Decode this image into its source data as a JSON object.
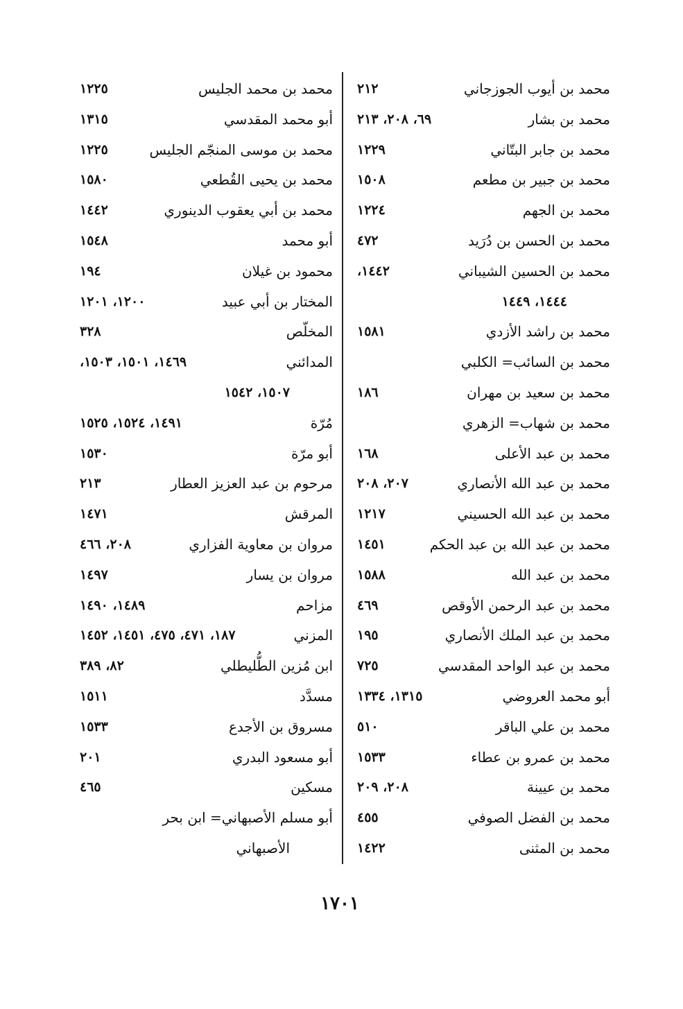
{
  "right_column": [
    {
      "name": "محمد بن أيوب الجوزجاني",
      "pages": "٢١٢"
    },
    {
      "name": "محمد بن بشار",
      "pages": "٦٩، ٢٠٨، ٢١٣"
    },
    {
      "name": "محمد بن جابر البتّاني",
      "pages": "١٢٢٩"
    },
    {
      "name": "محمد بن جبير بن مطعم",
      "pages": "١٥٠٨"
    },
    {
      "name": "محمد بن الجهم",
      "pages": "١٢٢٤"
    },
    {
      "name": "محمد بن الحسن بن دُرَيد",
      "pages": "٤٧٢"
    },
    {
      "name": "محمد بن الحسين الشيباني",
      "pages": "١٤٤٢،"
    },
    {
      "continuation": "١٤٤٤، ١٤٤٩",
      "numeric": true
    },
    {
      "name": "محمد بن راشد الأزدي",
      "pages": "١٥٨١"
    },
    {
      "name": "محمد بن السائب= الكلبي",
      "pages": ""
    },
    {
      "name": "محمد بن سعيد بن مهران",
      "pages": "١٨٦"
    },
    {
      "name": "محمد بن شهاب= الزهري",
      "pages": ""
    },
    {
      "name": "محمد بن عبد الأعلى",
      "pages": "١٦٨"
    },
    {
      "name": "محمد بن عبد الله الأنصاري",
      "pages": "٢٠٧، ٢٠٨"
    },
    {
      "name": "محمد بن عبد الله الحسيني",
      "pages": "١٢١٧"
    },
    {
      "name": "محمد بن عبد الله بن عبد الحكم",
      "pages": "١٤٥١"
    },
    {
      "name": "محمد بن عبد الله",
      "pages": "١٥٨٨"
    },
    {
      "name": "محمد بن عبد الرحمن الأوقص",
      "pages": "٤٦٩"
    },
    {
      "name": "محمد بن عبد الملك الأنصاري",
      "pages": "١٩٥"
    },
    {
      "name": "محمد بن عبد الواحد المقدسي",
      "pages": "٧٢٥"
    },
    {
      "name": "أبو محمد العروضي",
      "pages": "١٣١٥، ١٣٣٤"
    },
    {
      "name": "محمد بن علي الباقر",
      "pages": "٥١٠"
    },
    {
      "name": "محمد بن عمرو بن عطاء",
      "pages": "١٥٣٣"
    },
    {
      "name": "محمد بن عيينة",
      "pages": "٢٠٨، ٢٠٩"
    },
    {
      "name": "محمد بن الفضل الصوفي",
      "pages": "٤٥٥"
    },
    {
      "name": "محمد بن المثنى",
      "pages": "١٤٢٢"
    }
  ],
  "left_column": [
    {
      "name": "محمد بن محمد الجليس",
      "pages": "١٢٢٥"
    },
    {
      "name": "أبو محمد المقدسي",
      "pages": "١٣١٥"
    },
    {
      "name": "محمد بن موسى المنجّم الجليس",
      "pages": "١٢٢٥"
    },
    {
      "name": "محمد بن يحيى القُطعي",
      "pages": "١٥٨٠"
    },
    {
      "name": "محمد بن أبي يعقوب الدينوري",
      "pages": "١٤٤٢"
    },
    {
      "name": "أبو محمد",
      "pages": "١٥٤٨"
    },
    {
      "name": "محمود بن غيلان",
      "pages": "١٩٤"
    },
    {
      "name": "المختار بن أبي عبيد",
      "pages": "١٢٠٠، ١٢٠١"
    },
    {
      "name": "المخلّص",
      "pages": "٣٢٨"
    },
    {
      "name": "المدائني",
      "pages": "١٤٦٩، ١٥٠١، ١٥٠٣،"
    },
    {
      "continuation": "١٥٠٧، ١٥٤٢",
      "numeric": true
    },
    {
      "name": "مُرّة",
      "pages": "١٤٩١، ١٥٢٤، ١٥٢٥"
    },
    {
      "name": "أبو مرّة",
      "pages": "١٥٣٠"
    },
    {
      "name": "مرحوم بن عبد العزيز العطار",
      "pages": "٢١٣"
    },
    {
      "name": "المرقش",
      "pages": "١٤٧١"
    },
    {
      "name": "مروان بن معاوية الفزاري",
      "pages": "٢٠٨، ٤٦٦"
    },
    {
      "name": "مروان بن يسار",
      "pages": "١٤٩٧"
    },
    {
      "name": "مزاحم",
      "pages": "١٤٨٩، ١٤٩٠"
    },
    {
      "name": "المزني",
      "pages": "١٨٧، ٤٧١، ٤٧٥، ١٤٥١، ١٤٥٢"
    },
    {
      "name": "ابن مُزين الطُّليطلي",
      "pages": "٨٢، ٣٨٩"
    },
    {
      "name": "مسدَّد",
      "pages": "١٥١١"
    },
    {
      "name": "مسروق بن الأجدع",
      "pages": "١٥٣٣"
    },
    {
      "name": "أبو مسعود البدري",
      "pages": "٢٠١"
    },
    {
      "name": "مسكين",
      "pages": "٤٦٥"
    },
    {
      "name": "أبو مسلم الأصبهاني= ابن بحر",
      "pages": ""
    },
    {
      "continuation": "الأصبهاني",
      "numeric": false
    }
  ],
  "page_number": "١٧٠١"
}
